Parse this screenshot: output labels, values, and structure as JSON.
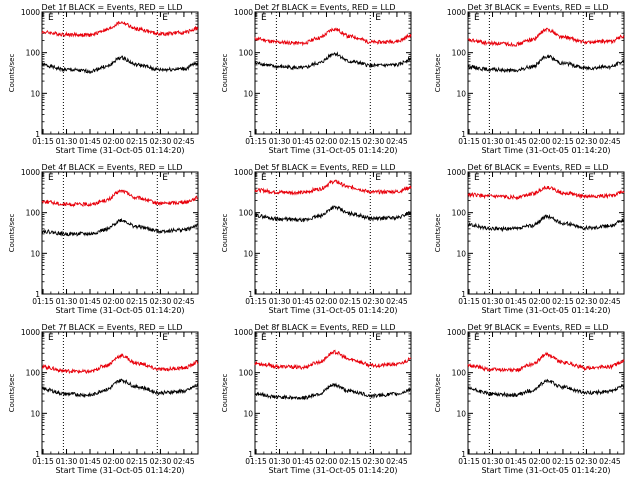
{
  "chart_data": [
    {
      "type": "line",
      "title": "Det 1f BLACK = Events, RED = LLD",
      "xlabel": "Start Time (31-Oct-05 01:14:20)",
      "ylabel": "Counts/sec",
      "yscale": "log",
      "ylim": [
        1,
        1000
      ],
      "x_ticks": [
        "01:15",
        "01:30",
        "01:45",
        "02:00",
        "02:15",
        "02:30",
        "02:45"
      ],
      "y_ticks": [
        "1",
        "10",
        "100",
        "1000"
      ],
      "xlim": [
        "01:14:20",
        "02:54:00"
      ],
      "markers": [
        {
          "label": "E",
          "time": "01:20"
        },
        {
          "label": "",
          "time": "01:28"
        },
        {
          "label": "E",
          "time": "02:33"
        },
        {
          "label": "",
          "time": "02:28"
        }
      ],
      "series": [
        {
          "name": "BLACK",
          "color": "#000000",
          "x": [
            "01:14",
            "01:30",
            "01:45",
            "01:55",
            "02:05",
            "02:15",
            "02:30",
            "02:45",
            "02:54"
          ],
          "values": [
            50,
            38,
            35,
            45,
            75,
            50,
            38,
            40,
            55
          ]
        },
        {
          "name": "RED",
          "color": "#e8000b",
          "x": [
            "01:14",
            "01:30",
            "01:45",
            "01:55",
            "02:05",
            "02:15",
            "02:30",
            "02:45",
            "02:54"
          ],
          "values": [
            320,
            280,
            270,
            360,
            550,
            380,
            290,
            310,
            400
          ]
        }
      ]
    },
    {
      "type": "line",
      "title": "Det 2f BLACK = Events, RED = LLD",
      "xlabel": "Start Time (31-Oct-05 01:14:20)",
      "ylabel": "Counts/sec",
      "yscale": "log",
      "ylim": [
        1,
        1000
      ],
      "x_ticks": [
        "01:15",
        "01:30",
        "01:45",
        "02:00",
        "02:15",
        "02:30",
        "02:45"
      ],
      "y_ticks": [
        "1",
        "10",
        "100",
        "1000"
      ],
      "xlim": [
        "01:14:20",
        "02:54:00"
      ],
      "markers": [
        {
          "label": "E",
          "time": "01:20"
        },
        {
          "label": "",
          "time": "01:28"
        },
        {
          "label": "E",
          "time": "02:33"
        },
        {
          "label": "",
          "time": "02:28"
        }
      ],
      "series": [
        {
          "name": "BLACK",
          "color": "#000000",
          "x": [
            "01:14",
            "01:30",
            "01:45",
            "01:55",
            "02:05",
            "02:15",
            "02:30",
            "02:45",
            "02:54"
          ],
          "values": [
            55,
            45,
            42,
            55,
            95,
            60,
            48,
            50,
            70
          ]
        },
        {
          "name": "RED",
          "color": "#e8000b",
          "x": [
            "01:14",
            "01:30",
            "01:45",
            "01:55",
            "02:05",
            "02:15",
            "02:30",
            "02:45",
            "02:54"
          ],
          "values": [
            220,
            180,
            170,
            230,
            380,
            250,
            180,
            190,
            260
          ]
        }
      ]
    },
    {
      "type": "line",
      "title": "Det 3f BLACK = Events, RED = LLD",
      "xlabel": "Start Time (31-Oct-05 01:14:20)",
      "ylabel": "Counts/sec",
      "yscale": "log",
      "ylim": [
        1,
        1000
      ],
      "x_ticks": [
        "01:15",
        "01:30",
        "01:45",
        "02:00",
        "02:15",
        "02:30",
        "02:45"
      ],
      "y_ticks": [
        "1",
        "10",
        "100",
        "1000"
      ],
      "xlim": [
        "01:14:20",
        "02:54:00"
      ],
      "markers": [
        {
          "label": "E",
          "time": "01:20"
        },
        {
          "label": "",
          "time": "01:28"
        },
        {
          "label": "E",
          "time": "02:33"
        },
        {
          "label": "",
          "time": "02:28"
        }
      ],
      "series": [
        {
          "name": "BLACK",
          "color": "#000000",
          "x": [
            "01:14",
            "01:30",
            "01:45",
            "01:55",
            "02:05",
            "02:15",
            "02:30",
            "02:45",
            "02:54"
          ],
          "values": [
            45,
            38,
            36,
            45,
            80,
            55,
            42,
            45,
            60
          ]
        },
        {
          "name": "RED",
          "color": "#e8000b",
          "x": [
            "01:14",
            "01:30",
            "01:45",
            "01:55",
            "02:05",
            "02:15",
            "02:30",
            "02:45",
            "02:54"
          ],
          "values": [
            200,
            170,
            160,
            210,
            370,
            240,
            180,
            190,
            250
          ]
        }
      ]
    },
    {
      "type": "line",
      "title": "Det 4f BLACK = Events, RED = LLD",
      "xlabel": "Start Time (31-Oct-05 01:14:20)",
      "ylabel": "Counts/sec",
      "yscale": "log",
      "ylim": [
        1,
        1000
      ],
      "x_ticks": [
        "01:15",
        "01:30",
        "01:45",
        "02:00",
        "02:15",
        "02:30",
        "02:45"
      ],
      "y_ticks": [
        "1",
        "10",
        "100",
        "1000"
      ],
      "xlim": [
        "01:14:20",
        "02:54:00"
      ],
      "markers": [
        {
          "label": "E",
          "time": "01:20"
        },
        {
          "label": "",
          "time": "01:28"
        },
        {
          "label": "E",
          "time": "02:33"
        },
        {
          "label": "",
          "time": "02:28"
        }
      ],
      "series": [
        {
          "name": "BLACK",
          "color": "#000000",
          "x": [
            "01:14",
            "01:30",
            "01:45",
            "01:55",
            "02:05",
            "02:15",
            "02:30",
            "02:45",
            "02:54"
          ],
          "values": [
            35,
            30,
            30,
            38,
            65,
            45,
            35,
            38,
            48
          ]
        },
        {
          "name": "RED",
          "color": "#e8000b",
          "x": [
            "01:14",
            "01:30",
            "01:45",
            "01:55",
            "02:05",
            "02:15",
            "02:30",
            "02:45",
            "02:54"
          ],
          "values": [
            190,
            160,
            160,
            200,
            340,
            230,
            170,
            180,
            230
          ]
        }
      ]
    },
    {
      "type": "line",
      "title": "Det 5f BLACK = Events, RED = LLD",
      "xlabel": "Start Time (31-Oct-05 01:14:20)",
      "ylabel": "Counts/sec",
      "yscale": "log",
      "ylim": [
        1,
        1000
      ],
      "x_ticks": [
        "01:15",
        "01:30",
        "01:45",
        "02:00",
        "02:15",
        "02:30",
        "02:45"
      ],
      "y_ticks": [
        "1",
        "10",
        "100",
        "1000"
      ],
      "xlim": [
        "01:14:20",
        "02:54:00"
      ],
      "markers": [
        {
          "label": "E",
          "time": "01:20"
        },
        {
          "label": "",
          "time": "01:28"
        },
        {
          "label": "E",
          "time": "02:33"
        },
        {
          "label": "",
          "time": "02:28"
        }
      ],
      "series": [
        {
          "name": "BLACK",
          "color": "#000000",
          "x": [
            "01:14",
            "01:30",
            "01:45",
            "01:55",
            "02:05",
            "02:15",
            "02:30",
            "02:45",
            "02:54"
          ],
          "values": [
            85,
            70,
            65,
            80,
            135,
            95,
            72,
            75,
            100
          ]
        },
        {
          "name": "RED",
          "color": "#e8000b",
          "x": [
            "01:14",
            "01:30",
            "01:45",
            "01:55",
            "02:05",
            "02:15",
            "02:30",
            "02:45",
            "02:54"
          ],
          "values": [
            360,
            320,
            310,
            380,
            580,
            420,
            320,
            330,
            420
          ]
        }
      ]
    },
    {
      "type": "line",
      "title": "Det 6f BLACK = Events, RED = LLD",
      "xlabel": "Start Time (31-Oct-05 01:14:20)",
      "ylabel": "Counts/sec",
      "yscale": "log",
      "ylim": [
        1,
        1000
      ],
      "x_ticks": [
        "01:15",
        "01:30",
        "01:45",
        "02:00",
        "02:15",
        "02:30",
        "02:45"
      ],
      "y_ticks": [
        "1",
        "10",
        "100",
        "1000"
      ],
      "xlim": [
        "01:14:20",
        "02:54:00"
      ],
      "markers": [
        {
          "label": "E",
          "time": "01:20"
        },
        {
          "label": "",
          "time": "01:28"
        },
        {
          "label": "E",
          "time": "02:33"
        },
        {
          "label": "",
          "time": "02:28"
        }
      ],
      "series": [
        {
          "name": "BLACK",
          "color": "#000000",
          "x": [
            "01:14",
            "01:30",
            "01:45",
            "01:55",
            "02:05",
            "02:15",
            "02:30",
            "02:45",
            "02:54"
          ],
          "values": [
            50,
            40,
            40,
            48,
            80,
            55,
            42,
            48,
            65
          ]
        },
        {
          "name": "RED",
          "color": "#e8000b",
          "x": [
            "01:14",
            "01:30",
            "01:45",
            "01:55",
            "02:05",
            "02:15",
            "02:30",
            "02:45",
            "02:54"
          ],
          "values": [
            280,
            250,
            240,
            290,
            420,
            310,
            250,
            260,
            330
          ]
        }
      ]
    },
    {
      "type": "line",
      "title": "Det 7f BLACK = Events, RED = LLD",
      "xlabel": "Start Time (31-Oct-05 01:14:20)",
      "ylabel": "Counts/sec",
      "yscale": "log",
      "ylim": [
        1,
        1000
      ],
      "x_ticks": [
        "01:15",
        "01:30",
        "01:45",
        "02:00",
        "02:15",
        "02:30",
        "02:45"
      ],
      "y_ticks": [
        "1",
        "10",
        "100",
        "1000"
      ],
      "xlim": [
        "01:14:20",
        "02:54:00"
      ],
      "markers": [
        {
          "label": "E",
          "time": "01:20"
        },
        {
          "label": "",
          "time": "01:28"
        },
        {
          "label": "E",
          "time": "02:33"
        },
        {
          "label": "",
          "time": "02:28"
        }
      ],
      "series": [
        {
          "name": "BLACK",
          "color": "#000000",
          "x": [
            "01:14",
            "01:30",
            "01:45",
            "01:55",
            "02:05",
            "02:15",
            "02:30",
            "02:45",
            "02:54"
          ],
          "values": [
            40,
            30,
            28,
            38,
            65,
            45,
            32,
            35,
            48
          ]
        },
        {
          "name": "RED",
          "color": "#e8000b",
          "x": [
            "01:14",
            "01:30",
            "01:45",
            "01:55",
            "02:05",
            "02:15",
            "02:30",
            "02:45",
            "02:54"
          ],
          "values": [
            140,
            110,
            105,
            150,
            260,
            170,
            120,
            130,
            180
          ]
        }
      ]
    },
    {
      "type": "line",
      "title": "Det 8f BLACK = Events, RED = LLD",
      "xlabel": "Start Time (31-Oct-05 01:14:20)",
      "ylabel": "Counts/sec",
      "yscale": "log",
      "ylim": [
        1,
        1000
      ],
      "x_ticks": [
        "01:15",
        "01:30",
        "01:45",
        "02:00",
        "02:15",
        "02:30",
        "02:45"
      ],
      "y_ticks": [
        "1",
        "10",
        "100",
        "1000"
      ],
      "xlim": [
        "01:14:20",
        "02:54:00"
      ],
      "markers": [
        {
          "label": "E",
          "time": "01:20"
        },
        {
          "label": "",
          "time": "01:28"
        },
        {
          "label": "E",
          "time": "02:33"
        },
        {
          "label": "",
          "time": "02:28"
        }
      ],
      "series": [
        {
          "name": "BLACK",
          "color": "#000000",
          "x": [
            "01:14",
            "01:30",
            "01:45",
            "01:55",
            "02:05",
            "02:15",
            "02:30",
            "02:45",
            "02:54"
          ],
          "values": [
            30,
            25,
            24,
            30,
            50,
            35,
            27,
            30,
            38
          ]
        },
        {
          "name": "RED",
          "color": "#e8000b",
          "x": [
            "01:14",
            "01:30",
            "01:45",
            "01:55",
            "02:05",
            "02:15",
            "02:30",
            "02:45",
            "02:54"
          ],
          "values": [
            170,
            140,
            135,
            180,
            320,
            210,
            150,
            160,
            210
          ]
        }
      ]
    },
    {
      "type": "line",
      "title": "Det 9f BLACK = Events, RED = LLD",
      "xlabel": "Start Time (31-Oct-05 01:14:20)",
      "ylabel": "Counts/sec",
      "yscale": "log",
      "ylim": [
        1,
        1000
      ],
      "x_ticks": [
        "01:15",
        "01:30",
        "01:45",
        "02:00",
        "02:15",
        "02:30",
        "02:45"
      ],
      "y_ticks": [
        "1",
        "10",
        "100",
        "1000"
      ],
      "xlim": [
        "01:14:20",
        "02:54:00"
      ],
      "markers": [
        {
          "label": "E",
          "time": "01:20"
        },
        {
          "label": "",
          "time": "01:28"
        },
        {
          "label": "E",
          "time": "02:33"
        },
        {
          "label": "",
          "time": "02:28"
        }
      ],
      "series": [
        {
          "name": "BLACK",
          "color": "#000000",
          "x": [
            "01:14",
            "01:30",
            "01:45",
            "01:55",
            "02:05",
            "02:15",
            "02:30",
            "02:45",
            "02:54"
          ],
          "values": [
            40,
            30,
            28,
            36,
            62,
            44,
            32,
            34,
            46
          ]
        },
        {
          "name": "RED",
          "color": "#e8000b",
          "x": [
            "01:14",
            "01:30",
            "01:45",
            "01:55",
            "02:05",
            "02:15",
            "02:30",
            "02:45",
            "02:54"
          ],
          "values": [
            150,
            120,
            115,
            160,
            280,
            180,
            130,
            140,
            190
          ]
        }
      ]
    }
  ]
}
